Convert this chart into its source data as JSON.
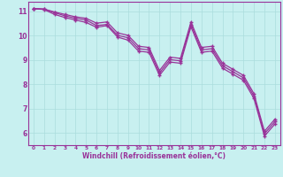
{
  "xlabel": "Windchill (Refroidissement éolien,°C)",
  "bg_color": "#c8f0f0",
  "line_color": "#993399",
  "grid_color": "#aadddd",
  "xlim": [
    -0.5,
    23.5
  ],
  "ylim": [
    5.5,
    11.4
  ],
  "xticks": [
    0,
    1,
    2,
    3,
    4,
    5,
    6,
    7,
    8,
    9,
    10,
    11,
    12,
    13,
    14,
    15,
    16,
    17,
    18,
    19,
    20,
    21,
    22,
    23
  ],
  "yticks": [
    6,
    7,
    8,
    9,
    10,
    11
  ],
  "line1_x": [
    0,
    1,
    2,
    3,
    4,
    5,
    6,
    7,
    8,
    9,
    10,
    11,
    12,
    13,
    14,
    15,
    16,
    17,
    18,
    19,
    20,
    21,
    22,
    23
  ],
  "line1_y": [
    11.12,
    11.1,
    10.95,
    10.82,
    10.72,
    10.65,
    10.42,
    10.47,
    10.02,
    9.92,
    9.47,
    9.42,
    8.47,
    9.02,
    8.97,
    10.47,
    9.42,
    9.47,
    8.77,
    8.52,
    8.27,
    7.52,
    5.97,
    6.47
  ],
  "line2_x": [
    0,
    1,
    2,
    3,
    4,
    5,
    6,
    7,
    8,
    9,
    10,
    11,
    12,
    13,
    14,
    15,
    16,
    17,
    18,
    19,
    20,
    21,
    22,
    23
  ],
  "line2_y": [
    11.12,
    11.1,
    10.98,
    10.88,
    10.78,
    10.72,
    10.52,
    10.57,
    10.12,
    10.02,
    9.57,
    9.52,
    8.57,
    9.12,
    9.07,
    10.57,
    9.52,
    9.57,
    8.87,
    8.62,
    8.37,
    7.62,
    6.07,
    6.57
  ],
  "line3_x": [
    0,
    1,
    2,
    3,
    4,
    5,
    6,
    7,
    8,
    9,
    10,
    11,
    12,
    13,
    14,
    15,
    16,
    17,
    18,
    19,
    20,
    21,
    22,
    23
  ],
  "line3_y": [
    11.12,
    11.08,
    10.88,
    10.75,
    10.65,
    10.55,
    10.35,
    10.42,
    9.95,
    9.82,
    9.37,
    9.32,
    8.37,
    8.92,
    8.87,
    10.37,
    9.32,
    9.37,
    8.67,
    8.42,
    8.17,
    7.42,
    5.87,
    6.37
  ]
}
